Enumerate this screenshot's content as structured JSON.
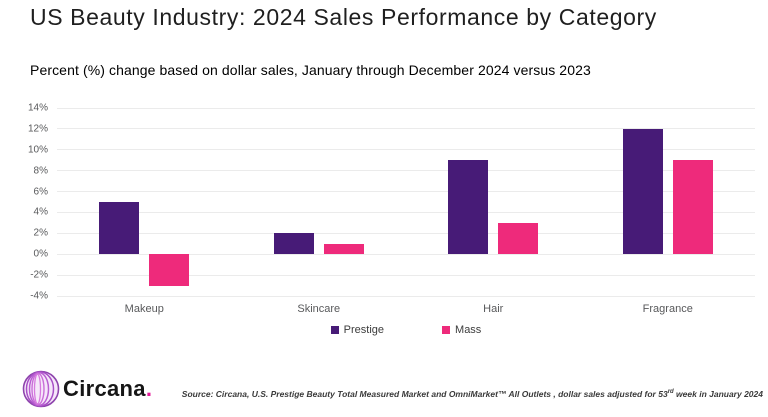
{
  "header": {
    "title": "US Beauty Industry: 2024 Sales Performance by Category",
    "subtitle": "Percent (%) change based on dollar sales, January through December 2024 versus 2023"
  },
  "chart_data": {
    "type": "bar",
    "categories": [
      "Makeup",
      "Skincare",
      "Hair",
      "Fragrance"
    ],
    "series": [
      {
        "name": "Prestige",
        "color": "#471b77",
        "values": [
          5,
          2,
          9,
          12
        ]
      },
      {
        "name": "Mass",
        "color": "#ee2a7b",
        "values": [
          -3,
          1,
          3,
          9
        ]
      }
    ],
    "title": "US Beauty Industry: 2024 Sales Performance by Category",
    "xlabel": "",
    "ylabel": "",
    "ylim": [
      -4,
      14
    ],
    "ytick_step": 2,
    "ytick_suffix": "%",
    "grid": true,
    "gridline_color": "#ebebeb",
    "legend_position": "bottom"
  },
  "footer": {
    "logo_text": "Circana",
    "logo_period": ".",
    "source_prefix": "Source: Circana, U.S. Prestige Beauty Total Measured Market and OmniMarket™ All Outlets , dollar sales adjusted for 53",
    "source_sup": "rd",
    "source_suffix": " week in January 2024"
  }
}
